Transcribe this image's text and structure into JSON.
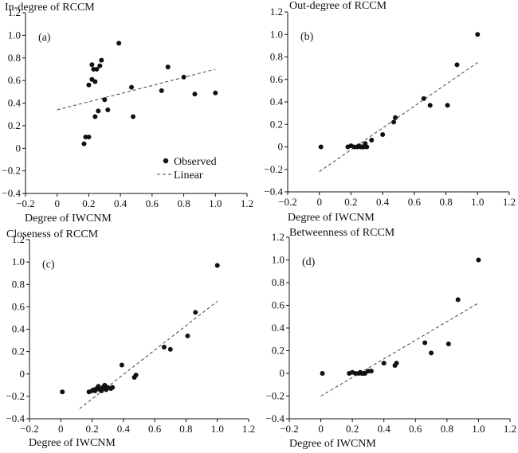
{
  "chart_data": [
    {
      "type": "scatter",
      "panel": "(a)",
      "title": "In-degree of RCCM",
      "xlabel": "Degree of IWCNM",
      "ylabel": "",
      "xlim": [
        -0.2,
        1.2
      ],
      "ylim": [
        -0.4,
        1.2
      ],
      "xticks": [
        "−0.2",
        "0",
        "0.2",
        "0.4",
        "0.6",
        "0.8",
        "1.0",
        "1.2"
      ],
      "yticks": [
        "−0.4",
        "−0.2",
        "0",
        "0.2",
        "0.4",
        "0.6",
        "0.8",
        "1.0",
        "1.2"
      ],
      "legend": {
        "position": "bottom-right",
        "observed": "Observed",
        "linear": "Linear"
      },
      "series": [
        {
          "name": "Observed",
          "points": [
            [
              0.17,
              0.04
            ],
            [
              0.18,
              0.1
            ],
            [
              0.2,
              0.1
            ],
            [
              0.2,
              0.56
            ],
            [
              0.22,
              0.61
            ],
            [
              0.22,
              0.74
            ],
            [
              0.23,
              0.7
            ],
            [
              0.24,
              0.59
            ],
            [
              0.24,
              0.28
            ],
            [
              0.25,
              0.7
            ],
            [
              0.26,
              0.33
            ],
            [
              0.27,
              0.73
            ],
            [
              0.28,
              0.78
            ],
            [
              0.3,
              0.43
            ],
            [
              0.32,
              0.34
            ],
            [
              0.39,
              0.93
            ],
            [
              0.47,
              0.54
            ],
            [
              0.48,
              0.28
            ],
            [
              0.66,
              0.51
            ],
            [
              0.7,
              0.72
            ],
            [
              0.8,
              0.63
            ],
            [
              0.87,
              0.48
            ],
            [
              1.0,
              0.49
            ]
          ]
        },
        {
          "name": "Linear",
          "line": [
            [
              0.0,
              0.34
            ],
            [
              1.0,
              0.7
            ]
          ]
        }
      ]
    },
    {
      "type": "scatter",
      "panel": "(b)",
      "title": "Out-degree of RCCM",
      "xlabel": "Degree of IWCNM",
      "ylabel": "",
      "xlim": [
        -0.2,
        1.2
      ],
      "ylim": [
        -0.4,
        1.2
      ],
      "xticks": [
        "−0.2",
        "0",
        "0.2",
        "0.4",
        "0.6",
        "0.8",
        "1.0",
        "1.2"
      ],
      "yticks": [
        "−0.4",
        "−0.2",
        "0",
        "0.2",
        "0.4",
        "0.6",
        "0.8",
        "1.0",
        "1.2"
      ],
      "series": [
        {
          "name": "Observed",
          "points": [
            [
              0.01,
              0.0
            ],
            [
              0.18,
              0.0
            ],
            [
              0.2,
              0.01
            ],
            [
              0.22,
              0.0
            ],
            [
              0.24,
              0.0
            ],
            [
              0.25,
              0.01
            ],
            [
              0.26,
              0.0
            ],
            [
              0.27,
              0.0
            ],
            [
              0.28,
              0.0
            ],
            [
              0.29,
              0.03
            ],
            [
              0.3,
              0.0
            ],
            [
              0.33,
              0.06
            ],
            [
              0.4,
              0.11
            ],
            [
              0.47,
              0.22
            ],
            [
              0.48,
              0.26
            ],
            [
              0.66,
              0.43
            ],
            [
              0.7,
              0.37
            ],
            [
              0.81,
              0.37
            ],
            [
              0.87,
              0.73
            ],
            [
              1.0,
              1.0
            ]
          ]
        },
        {
          "name": "Linear",
          "line": [
            [
              0.0,
              -0.22
            ],
            [
              1.0,
              0.75
            ]
          ]
        }
      ]
    },
    {
      "type": "scatter",
      "panel": "(c)",
      "title": "Closeness of RCCM",
      "xlabel": "Degree of IWCNM",
      "ylabel": "",
      "xlim": [
        -0.2,
        1.2
      ],
      "ylim": [
        -0.4,
        1.2
      ],
      "xticks": [
        "−0.2",
        "0",
        "0.2",
        "0.4",
        "0.6",
        "0.8",
        "1.0",
        "1.2"
      ],
      "yticks": [
        "−0.4",
        "−0.2",
        "0",
        "0.2",
        "0.4",
        "0.6",
        "0.8",
        "1.0",
        "1.2"
      ],
      "series": [
        {
          "name": "Observed",
          "points": [
            [
              0.01,
              -0.16
            ],
            [
              0.18,
              -0.16
            ],
            [
              0.2,
              -0.15
            ],
            [
              0.21,
              -0.14
            ],
            [
              0.22,
              -0.15
            ],
            [
              0.23,
              -0.13
            ],
            [
              0.24,
              -0.11
            ],
            [
              0.25,
              -0.14
            ],
            [
              0.26,
              -0.15
            ],
            [
              0.27,
              -0.12
            ],
            [
              0.28,
              -0.1
            ],
            [
              0.29,
              -0.14
            ],
            [
              0.3,
              -0.12
            ],
            [
              0.32,
              -0.13
            ],
            [
              0.33,
              -0.12
            ],
            [
              0.39,
              0.08
            ],
            [
              0.47,
              -0.03
            ],
            [
              0.48,
              -0.01
            ],
            [
              0.66,
              0.24
            ],
            [
              0.7,
              0.22
            ],
            [
              0.81,
              0.34
            ],
            [
              0.86,
              0.55
            ],
            [
              1.0,
              0.97
            ]
          ]
        },
        {
          "name": "Linear",
          "line": [
            [
              0.12,
              -0.31
            ],
            [
              1.0,
              0.65
            ]
          ]
        }
      ]
    },
    {
      "type": "scatter",
      "panel": "(d)",
      "title": "Betweenness of RCCM",
      "xlabel": "Degree of IWCNM",
      "ylabel": "",
      "xlim": [
        -0.2,
        1.2
      ],
      "ylim": [
        -0.4,
        1.2
      ],
      "xticks": [
        "−0.2",
        "0",
        "0.2",
        "0.4",
        "0.6",
        "0.8",
        "1.0",
        "1.2"
      ],
      "yticks": [
        "−0.4",
        "−0.2",
        "0",
        "0.2",
        "0.4",
        "0.6",
        "0.8",
        "1.0",
        "1.2"
      ],
      "series": [
        {
          "name": "Observed",
          "points": [
            [
              0.01,
              0.0
            ],
            [
              0.18,
              0.0
            ],
            [
              0.2,
              0.01
            ],
            [
              0.22,
              0.0
            ],
            [
              0.24,
              0.0
            ],
            [
              0.25,
              0.01
            ],
            [
              0.26,
              0.0
            ],
            [
              0.27,
              0.0
            ],
            [
              0.28,
              0.0
            ],
            [
              0.3,
              0.02
            ],
            [
              0.32,
              0.02
            ],
            [
              0.4,
              0.09
            ],
            [
              0.47,
              0.07
            ],
            [
              0.48,
              0.09
            ],
            [
              0.66,
              0.27
            ],
            [
              0.7,
              0.18
            ],
            [
              0.81,
              0.26
            ],
            [
              0.87,
              0.65
            ],
            [
              1.0,
              1.0
            ]
          ]
        },
        {
          "name": "Linear",
          "line": [
            [
              0.0,
              -0.2
            ],
            [
              1.0,
              0.62
            ]
          ]
        }
      ]
    }
  ],
  "colors": {
    "ink": "#111111",
    "marker": "#111111",
    "fit_line": "#444444"
  }
}
